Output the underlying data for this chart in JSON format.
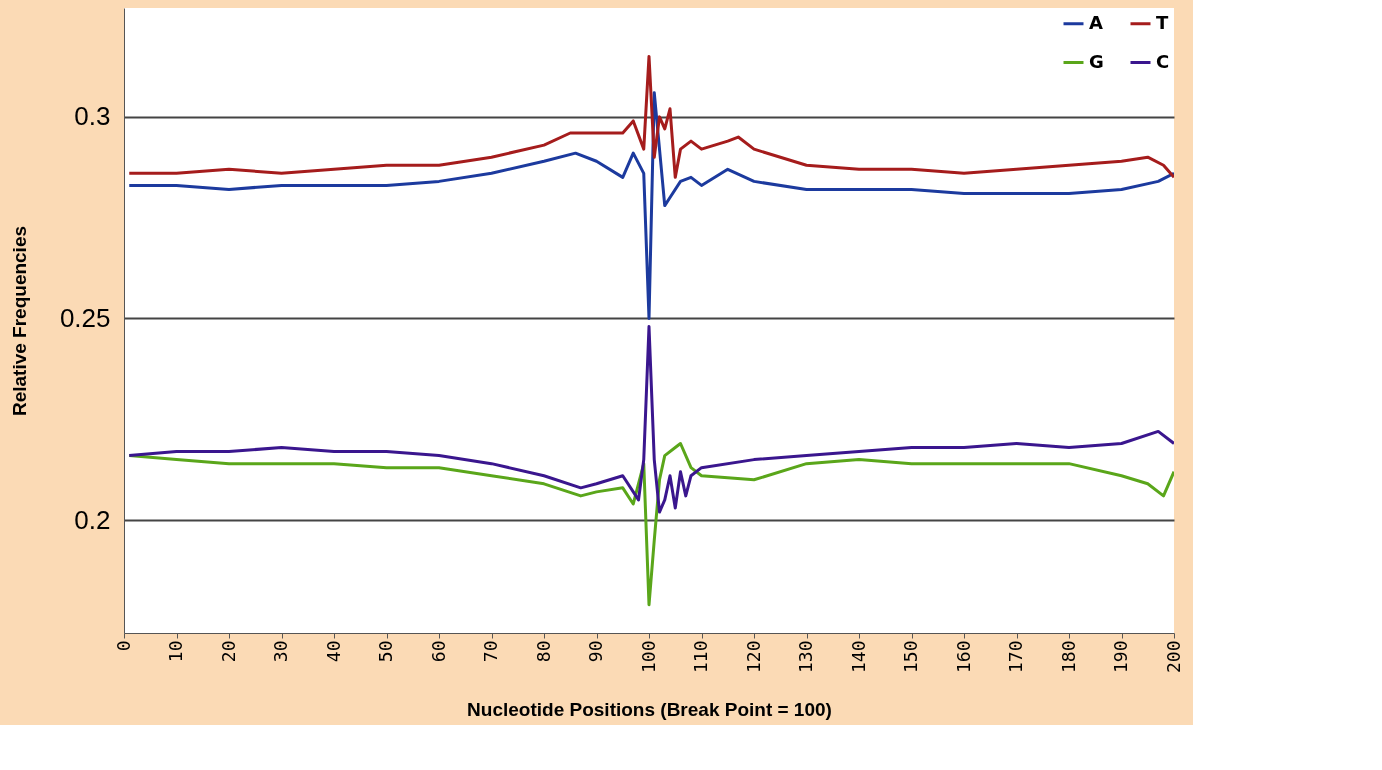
{
  "chart_data": {
    "type": "line",
    "xlabel": "Nucleotide Positions (Break Point = 100)",
    "ylabel": "Relative Frequencies",
    "xlim": [
      0,
      200
    ],
    "ylim": [
      0.172,
      0.327
    ],
    "xticks": [
      0,
      10,
      20,
      30,
      40,
      50,
      60,
      70,
      80,
      90,
      100,
      110,
      120,
      130,
      140,
      150,
      160,
      170,
      180,
      190,
      200
    ],
    "yticks": [
      0.2,
      0.25,
      0.3
    ],
    "grid": "y",
    "legend": "top right",
    "line_style": "solid",
    "series": [
      {
        "name": "A",
        "color": "#1c3a9e",
        "x": [
          1,
          10,
          20,
          30,
          40,
          50,
          60,
          70,
          80,
          86,
          90,
          95,
          97,
          99,
          100,
          101,
          103,
          104,
          106,
          108,
          110,
          115,
          120,
          130,
          140,
          150,
          160,
          170,
          180,
          190,
          197,
          200
        ],
        "values": [
          0.283,
          0.283,
          0.282,
          0.283,
          0.283,
          0.283,
          0.284,
          0.286,
          0.289,
          0.291,
          0.289,
          0.285,
          0.291,
          0.286,
          0.25,
          0.306,
          0.278,
          0.28,
          0.284,
          0.285,
          0.283,
          0.287,
          0.284,
          0.282,
          0.282,
          0.282,
          0.281,
          0.281,
          0.281,
          0.282,
          0.284,
          0.286
        ]
      },
      {
        "name": "G",
        "color": "#5aa61a",
        "x": [
          1,
          10,
          20,
          30,
          40,
          50,
          60,
          70,
          80,
          87,
          90,
          95,
          97,
          99,
          100,
          101,
          102,
          103,
          105,
          106,
          108,
          110,
          120,
          130,
          140,
          150,
          160,
          170,
          180,
          190,
          195,
          198,
          200
        ],
        "values": [
          0.216,
          0.215,
          0.214,
          0.214,
          0.214,
          0.213,
          0.213,
          0.211,
          0.209,
          0.206,
          0.207,
          0.208,
          0.204,
          0.214,
          0.179,
          0.195,
          0.21,
          0.216,
          0.218,
          0.219,
          0.213,
          0.211,
          0.21,
          0.214,
          0.215,
          0.214,
          0.214,
          0.214,
          0.214,
          0.211,
          0.209,
          0.206,
          0.212
        ]
      },
      {
        "name": "T",
        "color": "#a51c1c",
        "x": [
          1,
          10,
          20,
          30,
          40,
          50,
          60,
          70,
          80,
          85,
          90,
          95,
          97,
          99,
          100,
          101,
          102,
          103,
          104,
          105,
          106,
          108,
          110,
          115,
          117,
          120,
          130,
          140,
          150,
          160,
          170,
          180,
          190,
          195,
          198,
          200
        ],
        "values": [
          0.286,
          0.286,
          0.287,
          0.286,
          0.287,
          0.288,
          0.288,
          0.29,
          0.293,
          0.296,
          0.296,
          0.296,
          0.299,
          0.292,
          0.315,
          0.29,
          0.3,
          0.297,
          0.302,
          0.285,
          0.292,
          0.294,
          0.292,
          0.294,
          0.295,
          0.292,
          0.288,
          0.287,
          0.287,
          0.286,
          0.287,
          0.288,
          0.289,
          0.29,
          0.288,
          0.285
        ]
      },
      {
        "name": "C",
        "color": "#3a168e",
        "x": [
          1,
          10,
          20,
          30,
          40,
          50,
          60,
          70,
          80,
          87,
          90,
          95,
          98,
          99,
          100,
          101,
          102,
          103,
          104,
          105,
          106,
          107,
          108,
          110,
          120,
          130,
          140,
          150,
          160,
          170,
          180,
          190,
          197,
          200
        ],
        "values": [
          0.216,
          0.217,
          0.217,
          0.218,
          0.217,
          0.217,
          0.216,
          0.214,
          0.211,
          0.208,
          0.209,
          0.211,
          0.205,
          0.215,
          0.248,
          0.215,
          0.202,
          0.205,
          0.211,
          0.203,
          0.212,
          0.206,
          0.211,
          0.213,
          0.215,
          0.216,
          0.217,
          0.218,
          0.218,
          0.219,
          0.218,
          0.219,
          0.222,
          0.219
        ]
      }
    ]
  }
}
